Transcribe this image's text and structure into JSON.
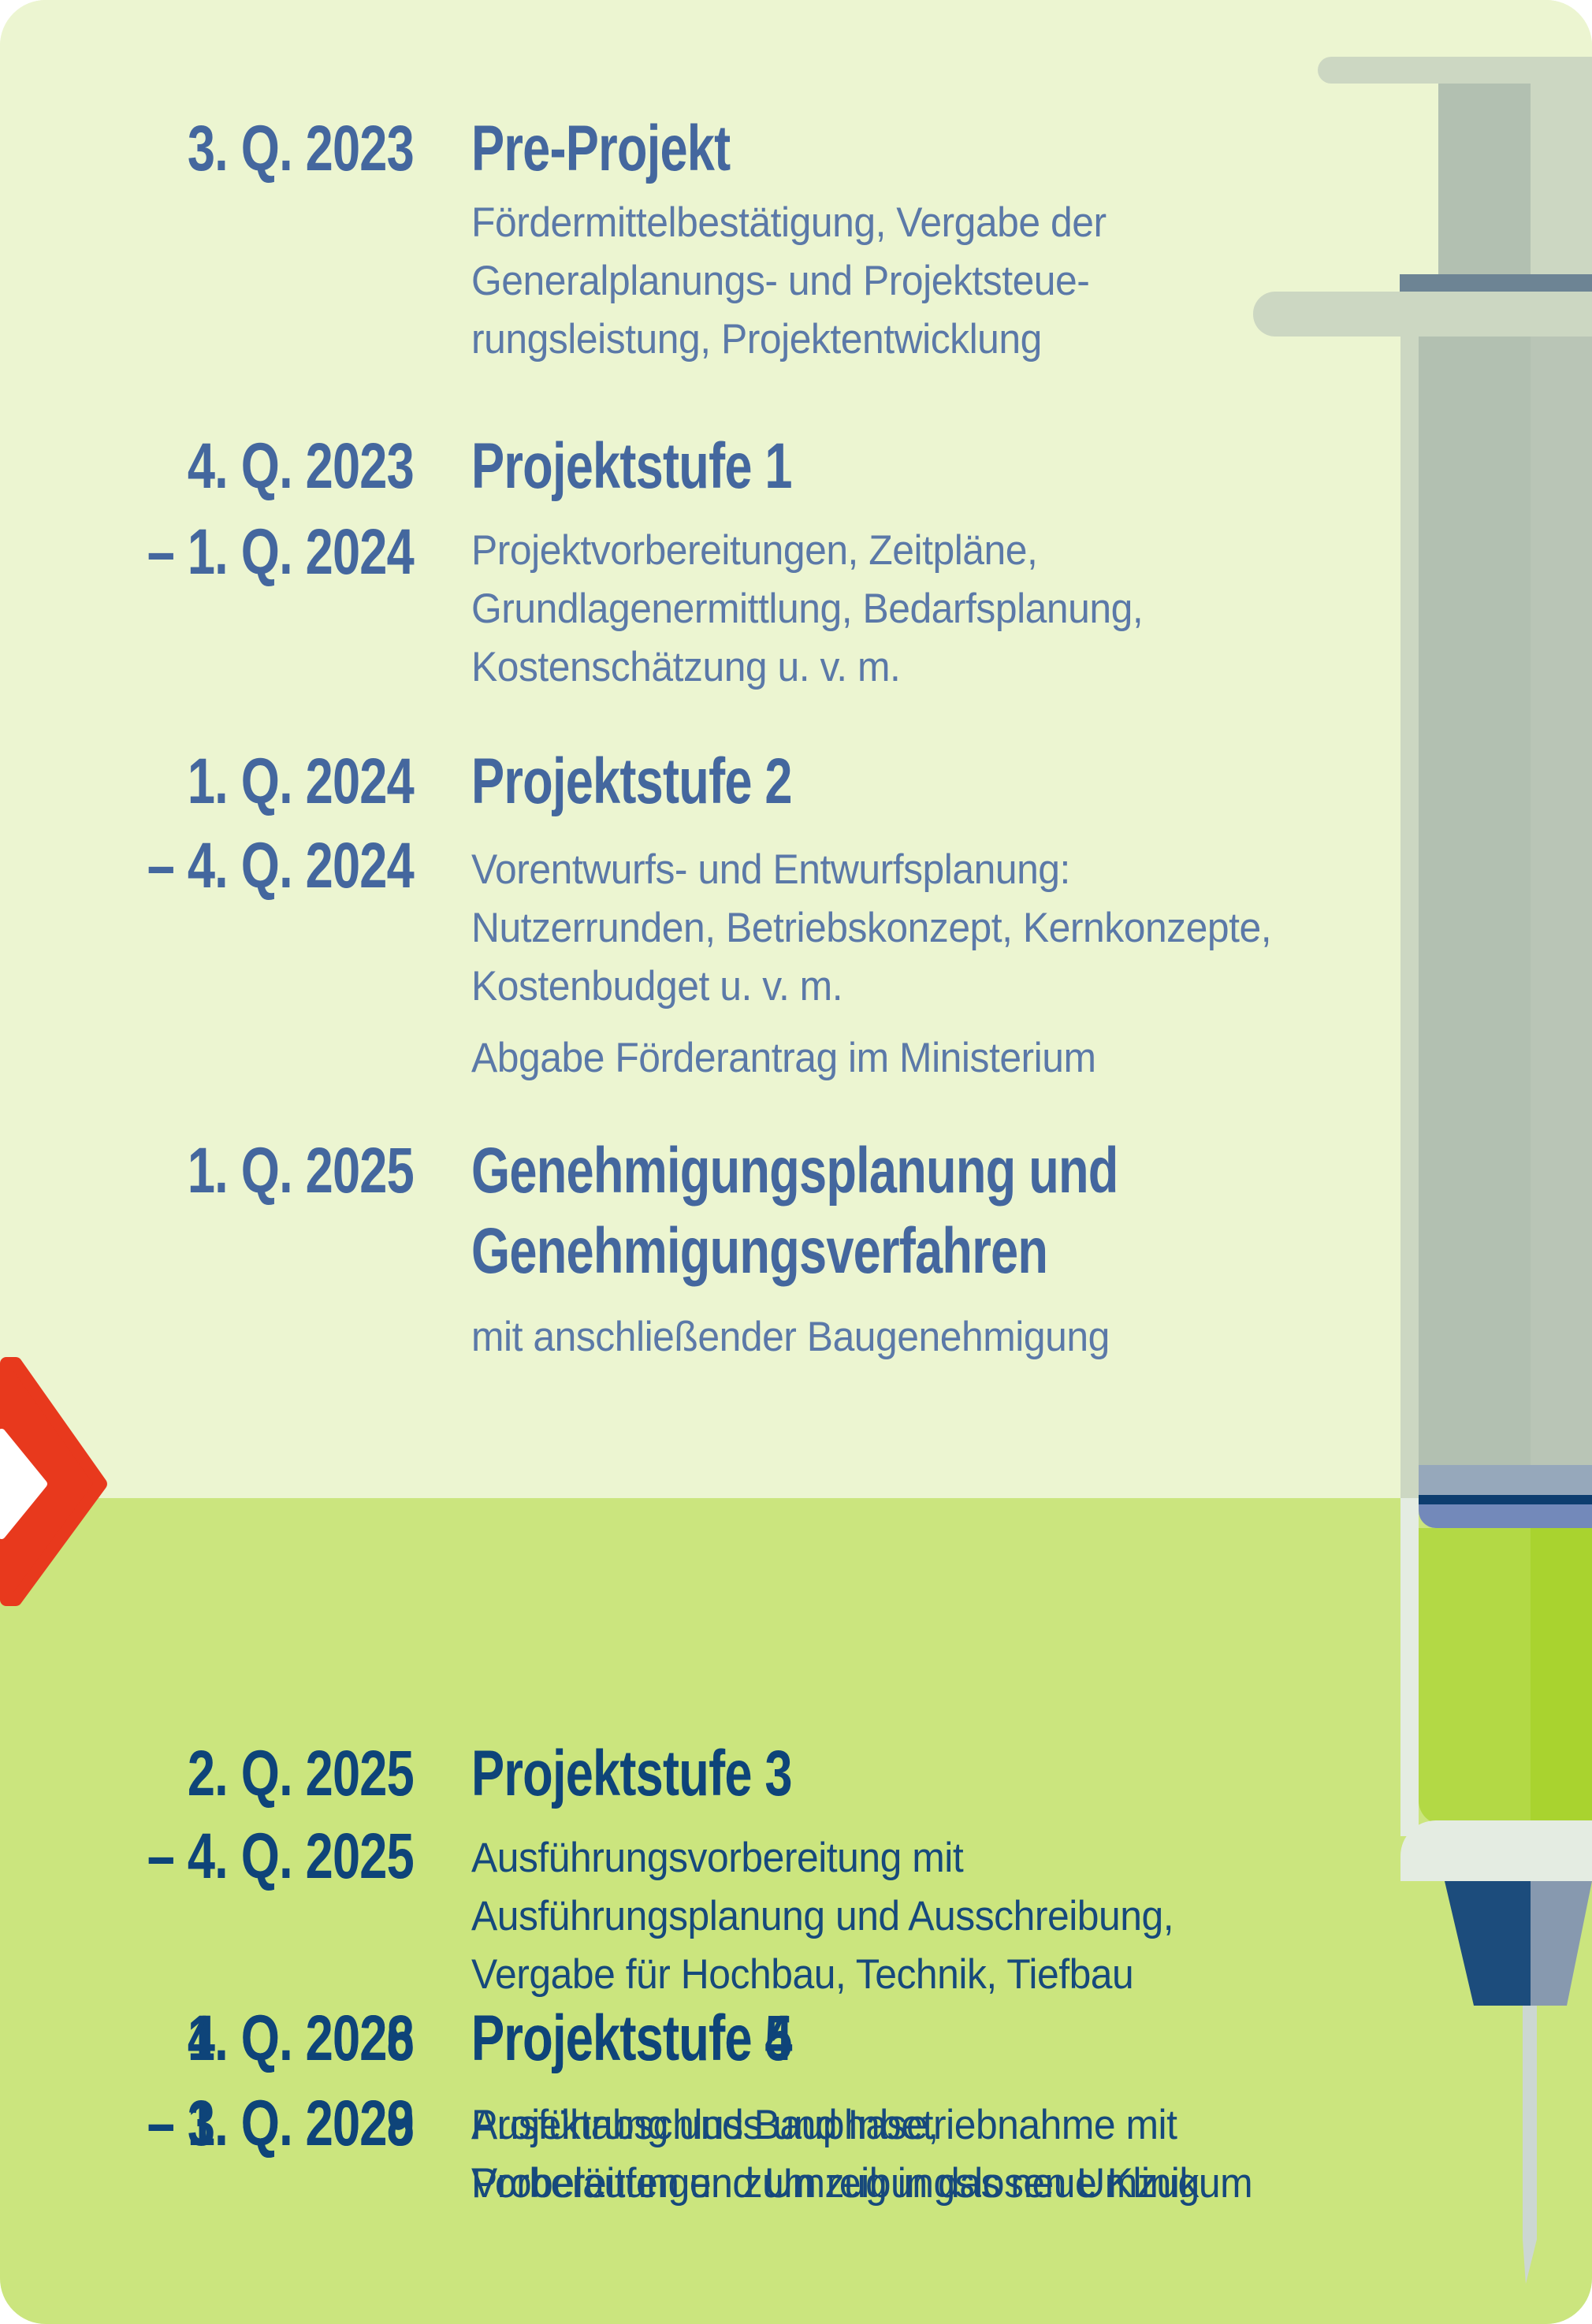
{
  "palette": {
    "bg_top": "#ecf5d1",
    "bg_bottom": "#cbe57e",
    "text_past": "#44679e",
    "text_past_body": "#5b79a8",
    "text_current": "#0e4479",
    "text_current_body": "#16497c",
    "arrow_red": "#e8391d",
    "sy_sage_light": "#ccd7c2",
    "sy_sage_mid": "#b2c0b1",
    "sy_sage_right": "#b9c5b6",
    "sy_flange_steel": "#6d8494",
    "sy_band_gray": "#96a8bb",
    "sy_band_navy": "#0d3d6f",
    "sy_band_blue": "#7389ba",
    "sy_liquid_left": "#b3d945",
    "sy_liquid_right": "#a9d32f",
    "sy_glass": "#e4ece2",
    "sy_nozzle_navy": "#1c4c7c",
    "sy_nozzle_steel": "#8799af",
    "sy_needle": "#ccd7d2"
  },
  "timeline": {
    "entries": [
      {
        "date_start": "3. Q. 2023",
        "date_end": "",
        "title": "Pre-Projekt",
        "body": "Fördermittelbestätigung, Vergabe der\nGeneralplanungs- und Projektsteue-\nrungsleistung, Projektentwicklung",
        "body2": "",
        "state": "past"
      },
      {
        "date_start": "4. Q. 2023",
        "date_end": "– 1. Q. 2024",
        "title": "Projektstufe 1",
        "body": "Projektvorbereitungen, Zeitpläne,\nGrundlagenermittlung, Bedarfsplanung,\nKostenschätzung u. v. m.",
        "body2": "",
        "state": "past"
      },
      {
        "date_start": "1. Q. 2024",
        "date_end": "– 4. Q. 2024",
        "title": "Projektstufe 2",
        "body": "Vorentwurfs- und Entwurfsplanung:\nNutzerrunden, Betriebskonzept, Kernkonzepte,\nKostenbudget u. v. m.",
        "body2": "Abgabe Förderantrag im Ministerium",
        "state": "past"
      },
      {
        "date_start": "1. Q. 2025",
        "date_end": "",
        "title": "Genehmigungsplanung und\nGenehmigungsverfahren",
        "body": "mit anschließender Baugenehmigung",
        "body2": "",
        "state": "past"
      },
      {
        "date_start": "2. Q. 2025",
        "date_end": "– 4. Q. 2025",
        "title": "Projektstufe 3",
        "body": "Ausführungsvorbereitung mit\nAusführungsplanung und Ausschreibung,\nVergabe für Hochbau, Technik, Tiefbau",
        "body2": "",
        "state": "current"
      },
      {
        "date_start": "1. Q. 2026",
        "date_end": "– 3. Q. 2028",
        "title": "Projektstufe 4",
        "body": "Ausführung und Bauphase,\nVorbereitungen zum reibungslosen Umzug",
        "body2": "",
        "state": "current"
      },
      {
        "date_start": "4. Q. 2028",
        "date_end": "– 1. Q. 2029",
        "title": "Projektstufe 5",
        "body": "Projektabschluss und Inbetriebnahme mit\nProbeläufen und Umzug in das neue Klinikum",
        "body2": "",
        "state": "current"
      }
    ]
  }
}
